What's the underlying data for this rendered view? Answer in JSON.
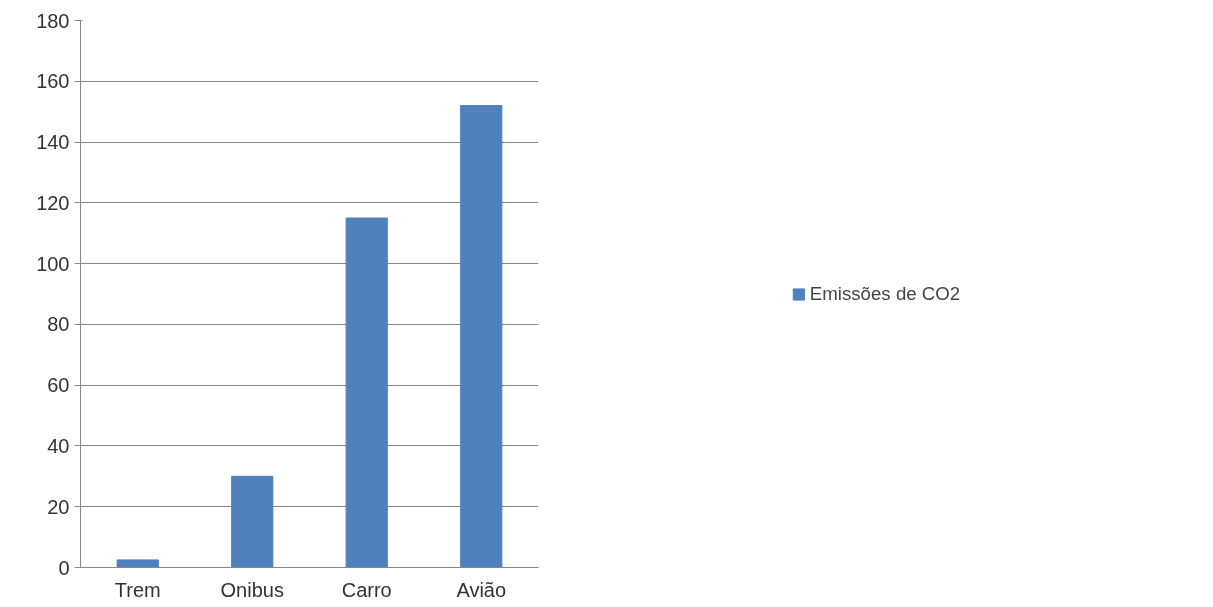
{
  "chart_data": {
    "type": "bar",
    "categories": [
      "Trem",
      "Onibus",
      "Carro",
      "Avião"
    ],
    "series": [
      {
        "name": "Emissões de CO2",
        "color": "#4f81bd",
        "values": [
          2.5,
          30,
          115,
          152
        ]
      }
    ],
    "ylim": [
      0,
      180
    ],
    "yticks": [
      0,
      20,
      40,
      60,
      80,
      100,
      120,
      140,
      160,
      180
    ],
    "grid": "y",
    "legend": "right"
  }
}
